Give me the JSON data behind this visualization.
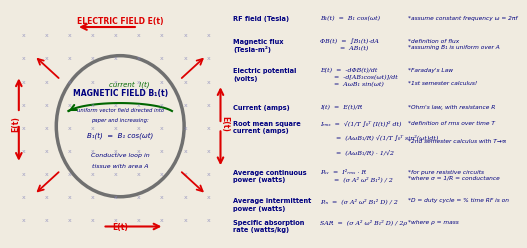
{
  "bg_color": "#f0ebe0",
  "title_top": "ELECTRIC FIELD E(t)",
  "title_bottom": "E(t)",
  "title_left": "E(t)",
  "title_right": "E(t)",
  "circle_color": "#707070",
  "circle_lw": 2.5,
  "mag_field_title": "MAGNETIC FIELD B₁(t)",
  "mag_field_sub1": "uniform vector field directed into",
  "mag_field_sub2": "paper and increasing:",
  "mag_field_eq": "B₁(t)  =  B₁ cos(ωt)",
  "conductive_text1": "Conductive loop in",
  "conductive_text2": "tissue with area A",
  "current_label": "current  I(t)",
  "cross_color": "#8888bb",
  "arrow_color": "#dd0000",
  "text_blue": "#000080",
  "text_green": "#006600",
  "formula_color": "#000080",
  "note_color": "#000080",
  "label_color": "#000080",
  "row_data": [
    {
      "label": "RF field (Tesla)",
      "formula": "B₁(t)  =  B₁ cos(ωt)",
      "note": "*assume constant frequency ω = 2πf",
      "label_lines": 1
    },
    {
      "label": "Magnetic flux\n(Tesla-m²)",
      "formula": "ΦB(t)  =  ∫B₁(t)·dA\n          =  AB₁(t)",
      "note": "*definition of flux\n*assuming B₁ is uniform over A",
      "label_lines": 2
    },
    {
      "label": "Electric potential\n(volts)",
      "formula": "E(t)  =  -dΦB(t)/dt\n       =  -d[AB₁cos(ωt)]/dt\n       =  AωB₁ sin(ωt)",
      "note": "*Faraday's Law\n\n*1st semester calculus!",
      "label_lines": 2
    },
    {
      "label": "Current (amps)",
      "formula": "I(t)  =  E(t)/R",
      "note": "*Ohm's law, with resistance R",
      "label_lines": 1
    },
    {
      "label": "Root mean square\ncurrent (amps)",
      "formula": "Iᵣₘₛ  =  √(1/T ∫₀ᵀ [I(t)]² dt)\n\n        =  (AωB₁/R) √(1/T ∫₀ᵀ sin²(ωt)dt)\n\n        =  (AωB₁/R) · 1/√2",
      "note": "*definition of rms over time T\n\n\n*2nd semester calculus with T→∞",
      "label_lines": 2
    },
    {
      "label": "Average continuous\npower (watts)",
      "formula": "Pₐᵥ  =  I²ᵣₘₛ · R\n       =  (σ A² ω² B₁²) / 2",
      "note": "*for pure resistive circuits\n*where σ = 1/R = conductance",
      "label_lines": 2
    },
    {
      "label": "Average intermittent\npower (watts)",
      "formula": "Pᵢₙ  =  (σ A² ω² B₁² D) / 2",
      "note": "*D = duty cycle = % time RF is on",
      "label_lines": 2
    },
    {
      "label": "Specific absorption\nrate (watts/kg)",
      "formula": "SAR  =  (σ A² ω² B₁² D) / 2ρ",
      "note": "*where ρ = mass",
      "label_lines": 2
    }
  ]
}
